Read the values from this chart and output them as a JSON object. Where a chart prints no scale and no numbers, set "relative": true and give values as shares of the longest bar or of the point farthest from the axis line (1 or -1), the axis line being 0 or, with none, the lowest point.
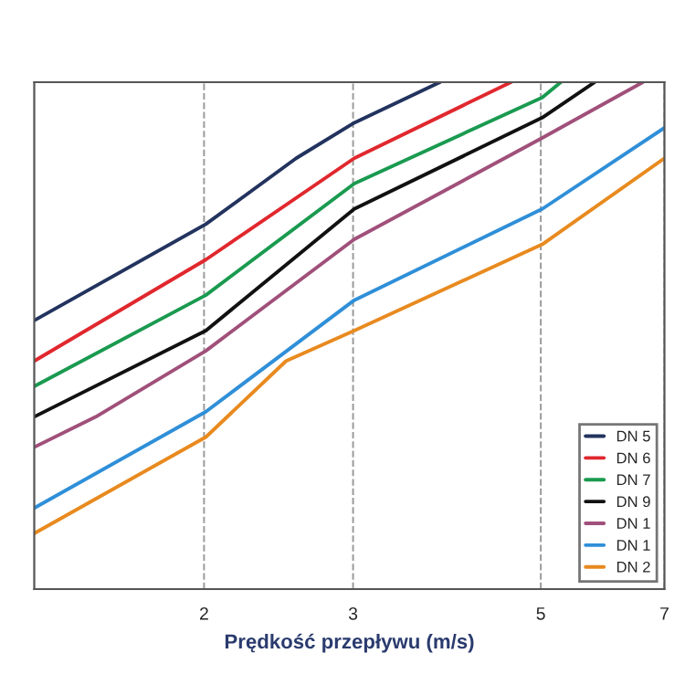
{
  "chart_data": {
    "type": "line",
    "xlabel": "Prędkość przepływu (m/s)",
    "relative": true,
    "log": "x",
    "xlim": [
      1.26,
      7.0
    ],
    "xticks": [
      2,
      3,
      5,
      7
    ],
    "grid": "x",
    "legend": "bottom right",
    "line_style": "solid",
    "marker": "none",
    "series": [
      {
        "name": "DN 5",
        "color": "#22335e",
        "x": [
          1.26,
          2.01,
          2.57,
          3.01,
          3.8
        ],
        "values": [
          0.53,
          0.72,
          0.85,
          0.92,
          1.0
        ]
      },
      {
        "name": "DN 6",
        "color": "#e0282e",
        "x": [
          1.26,
          2.01,
          3.01,
          4.61
        ],
        "values": [
          0.45,
          0.65,
          0.85,
          1.0
        ]
      },
      {
        "name": "DN 7",
        "color": "#1a9a50",
        "x": [
          1.26,
          2.01,
          3.01,
          5.02,
          5.28
        ],
        "values": [
          0.4,
          0.58,
          0.8,
          0.97,
          1.0
        ]
      },
      {
        "name": "DN 9",
        "color": "#111111",
        "x": [
          1.26,
          2.01,
          3.01,
          5.02,
          5.79
        ],
        "values": [
          0.34,
          0.51,
          0.75,
          0.93,
          1.0
        ]
      },
      {
        "name": "DN 1",
        "color": "#a0507a",
        "x": [
          1.26,
          1.49,
          2.01,
          3.01,
          5.02,
          6.6
        ],
        "values": [
          0.28,
          0.34,
          0.47,
          0.69,
          0.89,
          1.0
        ]
      },
      {
        "name": "DN 1",
        "color": "#2f8fd8",
        "x": [
          1.26,
          2.01,
          3.01,
          5.02,
          7.0
        ],
        "values": [
          0.16,
          0.35,
          0.57,
          0.75,
          0.91
        ]
      },
      {
        "name": "DN 2",
        "color": "#e88a1f",
        "x": [
          1.26,
          2.01,
          2.5,
          3.01,
          5.02,
          7.0
        ],
        "values": [
          0.11,
          0.3,
          0.45,
          0.51,
          0.68,
          0.85
        ]
      }
    ]
  }
}
